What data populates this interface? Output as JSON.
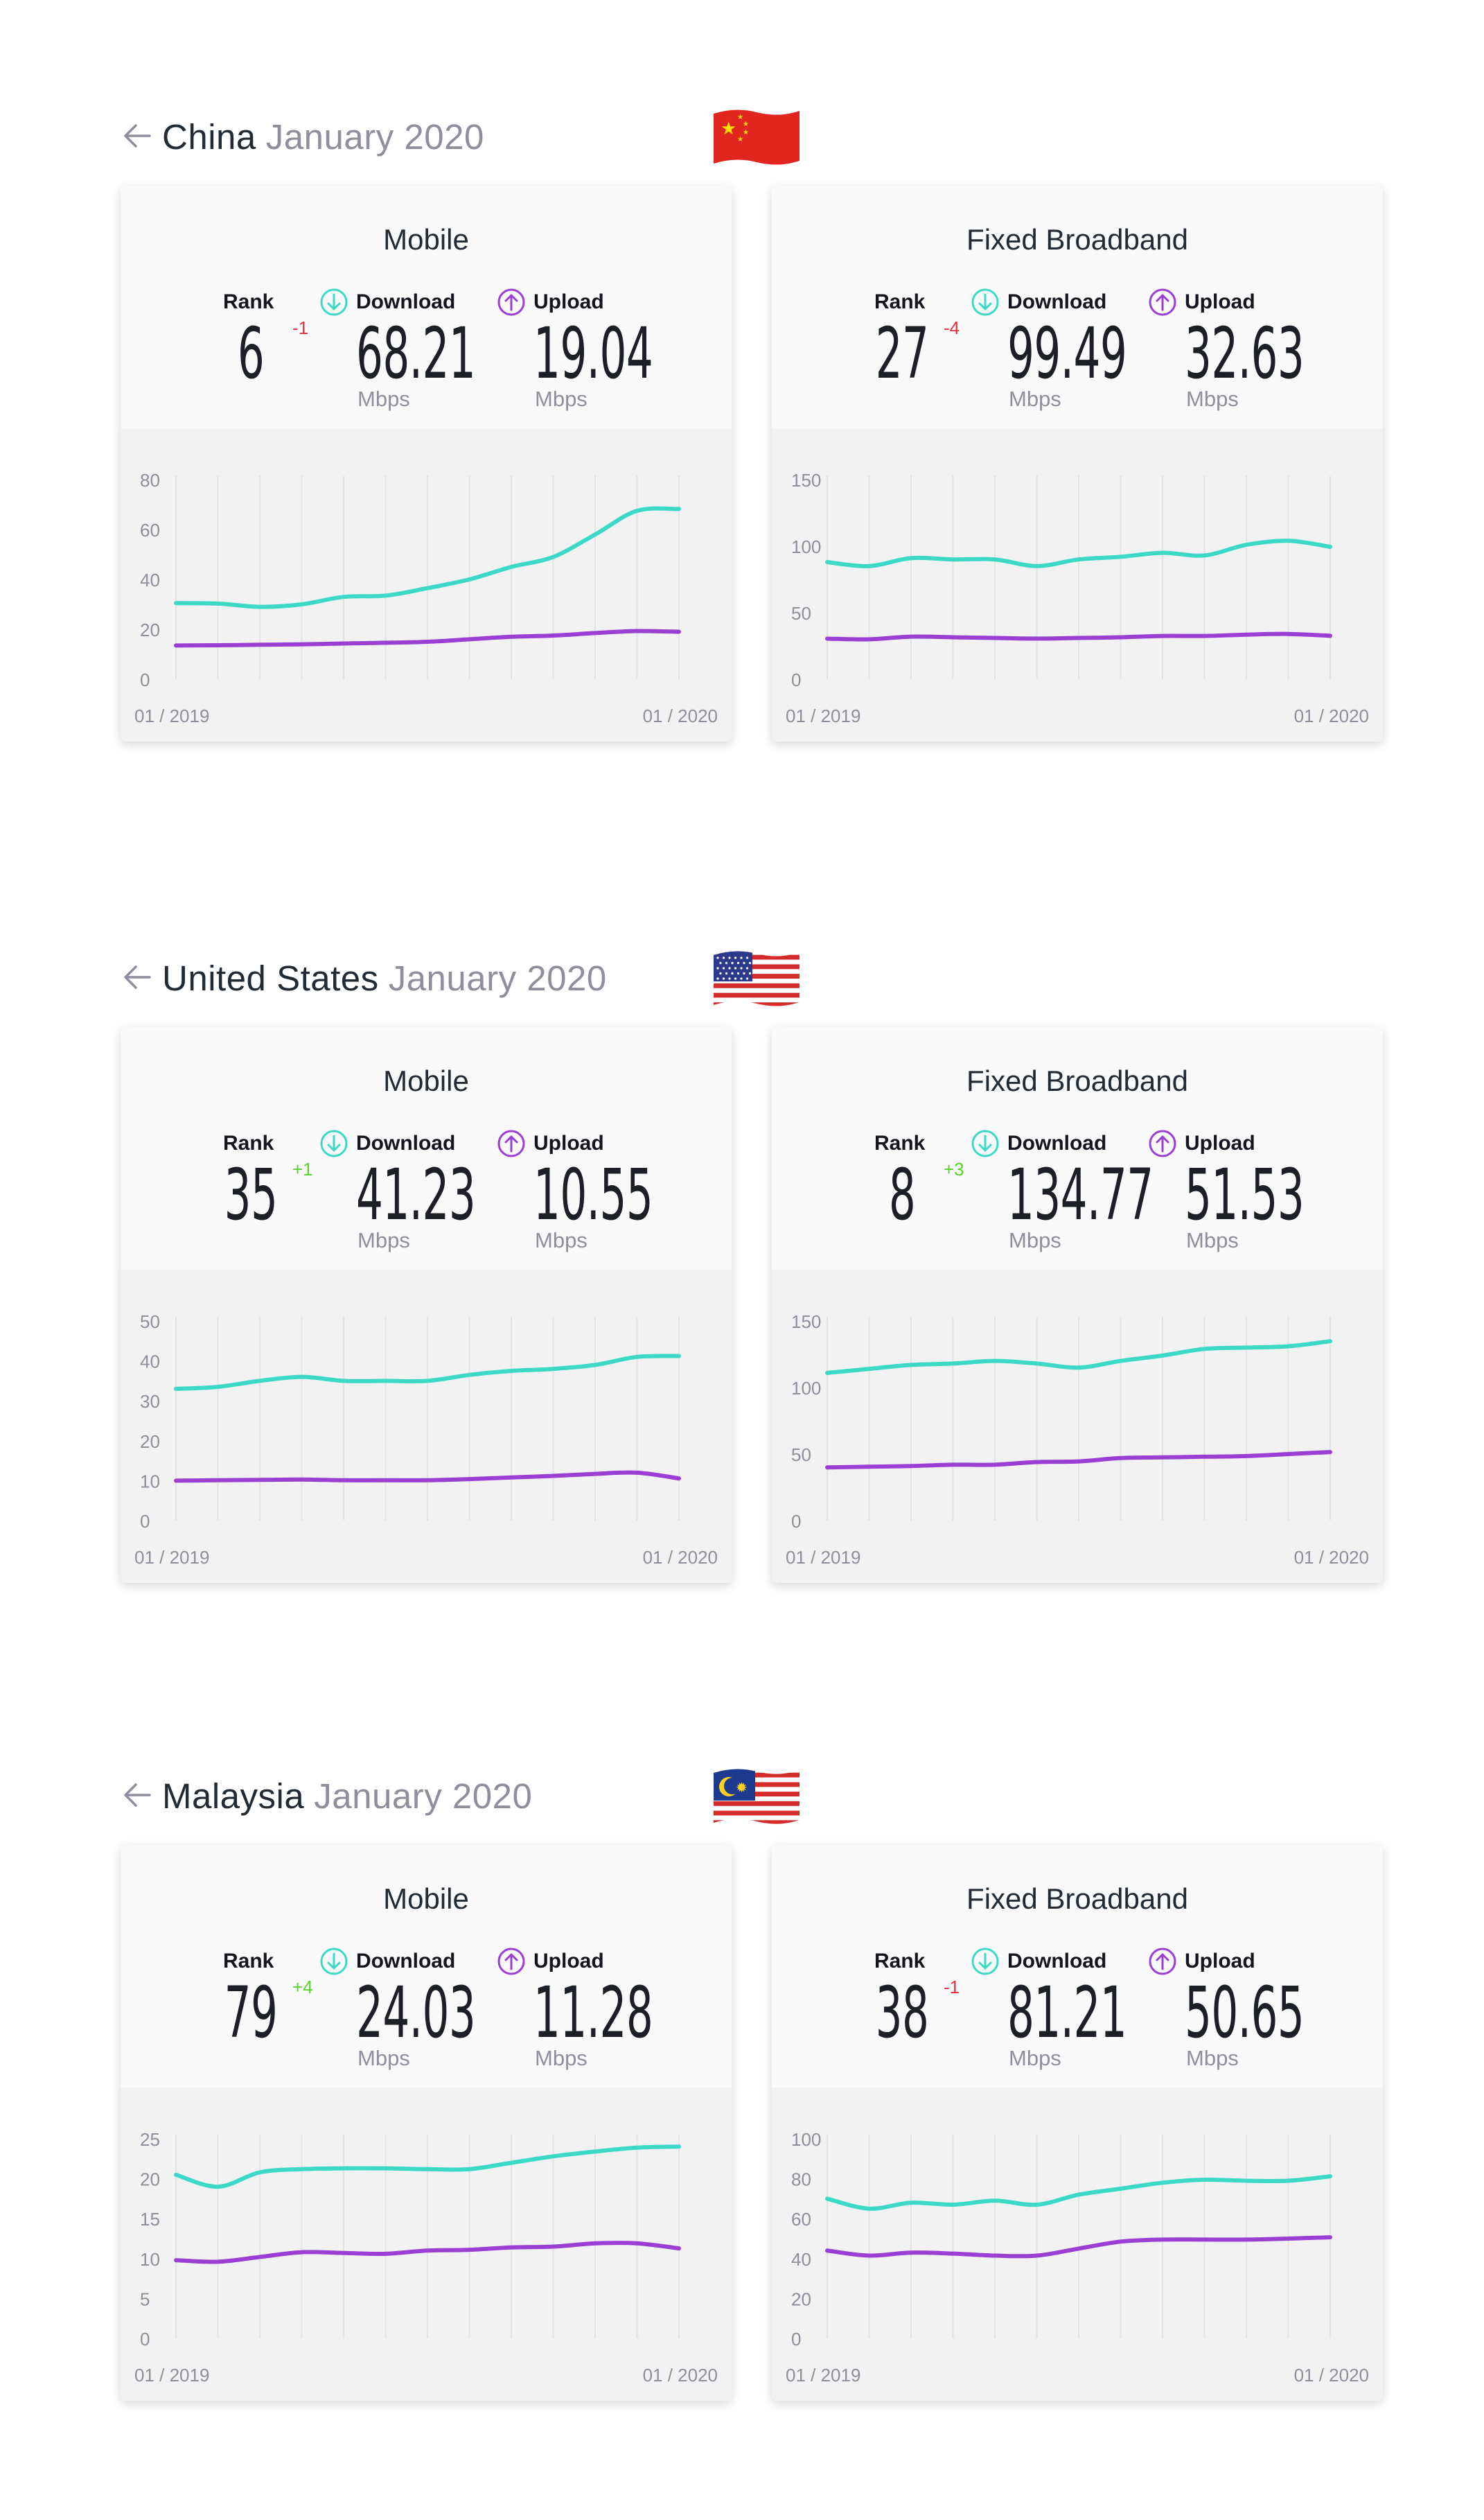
{
  "colors": {
    "download": "#3dd9c7",
    "upload": "#9b3fd4",
    "rank_up": "#5bd12e",
    "rank_down": "#e8303f",
    "accent_blue": "#2d9fe0"
  },
  "labels": {
    "rank": "Rank",
    "download": "Download",
    "upload": "Upload",
    "unit": "Mbps",
    "start": "01 / 2019",
    "end": "01 / 2020"
  },
  "icons": {
    "back": "arrow-left-icon",
    "mobile": "signal-bars-icon",
    "fixed": "wifi-icon",
    "download": "download-arrow-icon",
    "upload": "upload-arrow-icon"
  },
  "sections": [
    {
      "country": "China",
      "date": "January 2020",
      "flag": "china-flag",
      "mobile": {
        "title": "Mobile",
        "rank": "6",
        "rank_change": "-1",
        "download": "68.21",
        "upload": "19.04"
      },
      "fixed": {
        "title": "Fixed Broadband",
        "rank": "27",
        "rank_change": "-4",
        "download": "99.49",
        "upload": "32.63"
      }
    },
    {
      "country": "United States",
      "date": "January 2020",
      "flag": "usa-flag",
      "mobile": {
        "title": "Mobile",
        "rank": "35",
        "rank_change": "+1",
        "download": "41.23",
        "upload": "10.55"
      },
      "fixed": {
        "title": "Fixed Broadband",
        "rank": "8",
        "rank_change": "+3",
        "download": "134.77",
        "upload": "51.53"
      }
    },
    {
      "country": "Malaysia",
      "date": "January 2020",
      "flag": "malaysia-flag",
      "mobile": {
        "title": "Mobile",
        "rank": "79",
        "rank_change": "+4",
        "download": "24.03",
        "upload": "11.28"
      },
      "fixed": {
        "title": "Fixed Broadband",
        "rank": "38",
        "rank_change": "-1",
        "download": "81.21",
        "upload": "50.65"
      }
    }
  ],
  "chart_data": [
    {
      "type": "line",
      "title": "Mobile",
      "x": [
        "01 / 2019",
        "",
        "",
        "",
        "",
        "",
        "",
        "",
        "",
        "",
        "",
        "",
        "01 / 2020"
      ],
      "ylim": [
        0,
        80
      ],
      "yticks": [
        0,
        20,
        40,
        60,
        80
      ],
      "grid": true,
      "legend": "none",
      "series": [
        {
          "values": [
            30.5,
            30.3,
            29,
            30,
            33,
            33.5,
            36.5,
            40,
            45,
            49,
            58,
            67.5,
            68.21
          ]
        },
        {
          "values": [
            13.5,
            13.6,
            13.8,
            14,
            14.3,
            14.6,
            15,
            16,
            17,
            17.5,
            18.5,
            19.3,
            19.04
          ]
        }
      ]
    },
    {
      "type": "line",
      "title": "Fixed Broadband",
      "x": [
        "01 / 2019",
        "",
        "",
        "",
        "",
        "",
        "",
        "",
        "",
        "",
        "",
        "",
        "01 / 2020"
      ],
      "ylim": [
        0,
        150
      ],
      "yticks": [
        0,
        50,
        100,
        150
      ],
      "grid": true,
      "legend": "none",
      "series": [
        {
          "values": [
            88,
            85,
            91,
            90,
            90,
            85,
            90,
            92,
            95,
            93,
            101,
            104,
            99.49
          ]
        },
        {
          "values": [
            30.5,
            30,
            32,
            31.5,
            31,
            30.5,
            31,
            31.5,
            32.5,
            32.5,
            33.5,
            34,
            32.63
          ]
        }
      ]
    },
    {
      "type": "line",
      "title": "Mobile",
      "x": [
        "01 / 2019",
        "",
        "",
        "",
        "",
        "",
        "",
        "",
        "",
        "",
        "",
        "",
        "01 / 2020"
      ],
      "ylim": [
        0,
        50
      ],
      "yticks": [
        0,
        10,
        20,
        30,
        40,
        50
      ],
      "grid": true,
      "legend": "none",
      "series": [
        {
          "values": [
            33,
            33.5,
            35,
            36,
            35,
            35,
            35,
            36.5,
            37.5,
            38,
            39,
            41,
            41.23
          ]
        },
        {
          "values": [
            10,
            10.1,
            10.2,
            10.3,
            10.1,
            10.1,
            10.1,
            10.4,
            10.8,
            11.2,
            11.7,
            12,
            10.55
          ]
        }
      ]
    },
    {
      "type": "line",
      "title": "Fixed Broadband",
      "x": [
        "01 / 2019",
        "",
        "",
        "",
        "",
        "",
        "",
        "",
        "",
        "",
        "",
        "",
        "01 / 2020"
      ],
      "ylim": [
        0,
        150
      ],
      "yticks": [
        0,
        50,
        100,
        150
      ],
      "grid": true,
      "legend": "none",
      "series": [
        {
          "values": [
            111,
            114,
            117,
            118,
            120,
            118,
            115,
            120,
            124,
            129,
            130,
            131,
            134.77
          ]
        },
        {
          "values": [
            40,
            40.5,
            41,
            42,
            42,
            44,
            44.5,
            47,
            47.5,
            48,
            48.5,
            50,
            51.53
          ]
        }
      ]
    },
    {
      "type": "line",
      "title": "Mobile",
      "x": [
        "01 / 2019",
        "",
        "",
        "",
        "",
        "",
        "",
        "",
        "",
        "",
        "",
        "",
        "01 / 2020"
      ],
      "ylim": [
        0,
        25
      ],
      "yticks": [
        0,
        5,
        10,
        15,
        20,
        25
      ],
      "grid": true,
      "legend": "none",
      "series": [
        {
          "values": [
            20.5,
            19,
            20.8,
            21.2,
            21.3,
            21.3,
            21.2,
            21.2,
            22,
            22.8,
            23.4,
            23.9,
            24.03
          ]
        },
        {
          "values": [
            9.8,
            9.6,
            10.2,
            10.8,
            10.7,
            10.6,
            11,
            11.1,
            11.4,
            11.5,
            11.9,
            11.9,
            11.28
          ]
        }
      ]
    },
    {
      "type": "line",
      "title": "Fixed Broadband",
      "x": [
        "01 / 2019",
        "",
        "",
        "",
        "",
        "",
        "",
        "",
        "",
        "",
        "",
        "",
        "01 / 2020"
      ],
      "ylim": [
        0,
        100
      ],
      "yticks": [
        0,
        20,
        40,
        60,
        80,
        100
      ],
      "grid": true,
      "legend": "none",
      "series": [
        {
          "values": [
            70,
            65,
            68,
            67,
            69,
            67,
            72,
            75,
            78,
            79.5,
            79,
            79,
            81.21
          ]
        },
        {
          "values": [
            44,
            41.5,
            43,
            42.5,
            41.5,
            41.5,
            45,
            48.5,
            49.5,
            49.5,
            49.5,
            50,
            50.65
          ]
        }
      ]
    }
  ]
}
